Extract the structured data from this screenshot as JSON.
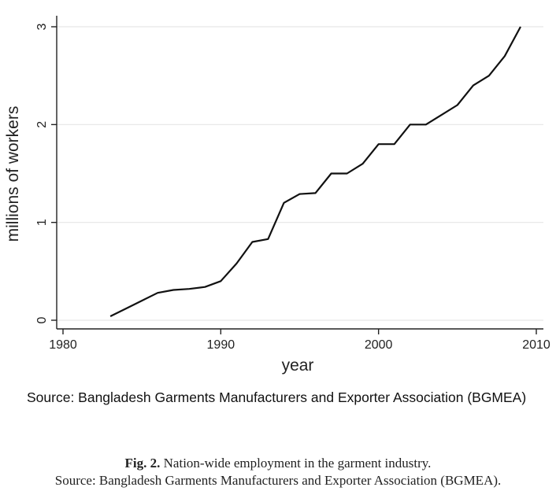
{
  "chart_data": {
    "type": "line",
    "title": "",
    "xlabel": "year",
    "ylabel": "millions of workers",
    "xlim": [
      1980,
      2010
    ],
    "ylim": [
      0,
      3
    ],
    "xticks": [
      1980,
      1990,
      2000,
      2010
    ],
    "yticks": [
      0,
      1,
      2,
      3
    ],
    "grid": true,
    "legend": "none",
    "series": [
      {
        "x": [
          1983,
          1984,
          1985,
          1986,
          1987,
          1988,
          1989,
          1990,
          1991,
          1992,
          1993,
          1994,
          1995,
          1996,
          1997,
          1998,
          1999,
          2000,
          2001,
          2002,
          2003,
          2004,
          2005,
          2006,
          2007,
          2008,
          2009
        ],
        "values": [
          0.04,
          0.12,
          0.2,
          0.28,
          0.31,
          0.32,
          0.34,
          0.4,
          0.58,
          0.8,
          0.83,
          1.2,
          1.29,
          1.3,
          1.5,
          1.5,
          1.6,
          1.8,
          1.8,
          2.0,
          2.0,
          2.1,
          2.2,
          2.4,
          2.5,
          2.7,
          3.0
        ]
      }
    ],
    "line_color": "#111111",
    "grid_color": "#e6e6e6"
  },
  "source_note": "Source: Bangladesh Garments Manufacturers and Exporter Association (BGMEA)",
  "caption": {
    "label": "Fig. 2.",
    "text": " Nation-wide employment in the garment industry.",
    "source": "Source: Bangladesh Garments Manufacturers and Exporter Association (BGMEA)."
  }
}
